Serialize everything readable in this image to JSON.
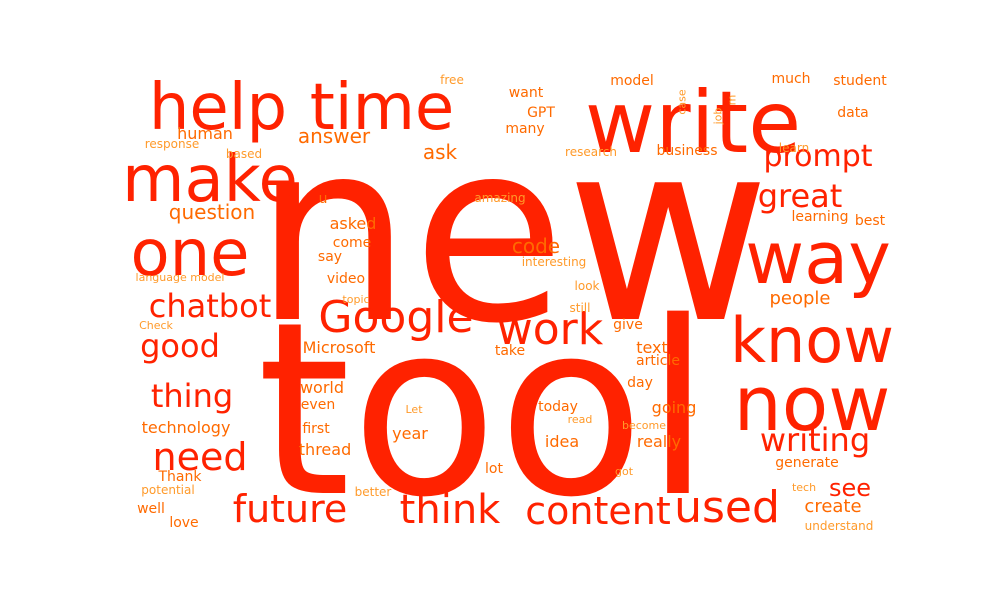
{
  "palette": {
    "red": "#ff2200",
    "orange": "#ff6a00",
    "light": "#ff9a2a"
  },
  "words": [
    {
      "text": "new",
      "color": "red"
    },
    {
      "text": "tool",
      "color": "red"
    },
    {
      "text": "write",
      "color": "red"
    },
    {
      "text": "help",
      "color": "red"
    },
    {
      "text": "time",
      "color": "red"
    },
    {
      "text": "make",
      "color": "red"
    },
    {
      "text": "one",
      "color": "red"
    },
    {
      "text": "way",
      "color": "red"
    },
    {
      "text": "know",
      "color": "red"
    },
    {
      "text": "now",
      "color": "red"
    },
    {
      "text": "Google",
      "color": "red"
    },
    {
      "text": "work",
      "color": "red"
    },
    {
      "text": "chatbot",
      "color": "red"
    },
    {
      "text": "good",
      "color": "red"
    },
    {
      "text": "thing",
      "color": "red"
    },
    {
      "text": "need",
      "color": "red"
    },
    {
      "text": "future",
      "color": "red"
    },
    {
      "text": "think",
      "color": "red"
    },
    {
      "text": "content",
      "color": "red"
    },
    {
      "text": "used",
      "color": "red"
    },
    {
      "text": "writing",
      "color": "red"
    },
    {
      "text": "prompt",
      "color": "red"
    },
    {
      "text": "great",
      "color": "red"
    },
    {
      "text": "see",
      "color": "red"
    },
    {
      "text": "question",
      "color": "orange"
    },
    {
      "text": "answer",
      "color": "orange"
    },
    {
      "text": "ask",
      "color": "orange"
    },
    {
      "text": "code",
      "color": "orange"
    },
    {
      "text": "people",
      "color": "orange"
    },
    {
      "text": "create",
      "color": "orange"
    },
    {
      "text": "Microsoft",
      "color": "orange"
    },
    {
      "text": "human",
      "color": "orange"
    },
    {
      "text": "technology",
      "color": "orange"
    },
    {
      "text": "Thank",
      "color": "orange"
    },
    {
      "text": "text",
      "color": "orange"
    },
    {
      "text": "article",
      "color": "orange"
    },
    {
      "text": "day",
      "color": "orange"
    },
    {
      "text": "going",
      "color": "orange"
    },
    {
      "text": "really",
      "color": "orange"
    },
    {
      "text": "generate",
      "color": "orange"
    },
    {
      "text": "today",
      "color": "orange"
    },
    {
      "text": "year",
      "color": "orange"
    },
    {
      "text": "idea",
      "color": "orange"
    },
    {
      "text": "world",
      "color": "orange"
    },
    {
      "text": "even",
      "color": "orange"
    },
    {
      "text": "first",
      "color": "orange"
    },
    {
      "text": "thread",
      "color": "orange"
    },
    {
      "text": "lot",
      "color": "orange"
    },
    {
      "text": "take",
      "color": "orange"
    },
    {
      "text": "give",
      "color": "orange"
    },
    {
      "text": "video",
      "color": "orange"
    },
    {
      "text": "asked",
      "color": "orange"
    },
    {
      "text": "come",
      "color": "orange"
    },
    {
      "text": "say",
      "color": "orange"
    },
    {
      "text": "u",
      "color": "orange"
    },
    {
      "text": "want",
      "color": "orange"
    },
    {
      "text": "GPT",
      "color": "orange"
    },
    {
      "text": "many",
      "color": "orange"
    },
    {
      "text": "model",
      "color": "orange"
    },
    {
      "text": "much",
      "color": "orange"
    },
    {
      "text": "student",
      "color": "orange"
    },
    {
      "text": "data",
      "color": "orange"
    },
    {
      "text": "business",
      "color": "orange"
    },
    {
      "text": "learn",
      "color": "light"
    },
    {
      "text": "learning",
      "color": "orange"
    },
    {
      "text": "best",
      "color": "orange"
    },
    {
      "text": "well",
      "color": "orange"
    },
    {
      "text": "love",
      "color": "orange"
    },
    {
      "text": "better",
      "color": "light"
    },
    {
      "text": "potential",
      "color": "light"
    },
    {
      "text": "response",
      "color": "light"
    },
    {
      "text": "based",
      "color": "light"
    },
    {
      "text": "research",
      "color": "light"
    },
    {
      "text": "free",
      "color": "light"
    },
    {
      "text": "amazing",
      "color": "light"
    },
    {
      "text": "interesting",
      "color": "light"
    },
    {
      "text": "language model",
      "color": "light"
    },
    {
      "text": "topic",
      "color": "light"
    },
    {
      "text": "Check",
      "color": "light"
    },
    {
      "text": "still",
      "color": "light"
    },
    {
      "text": "look",
      "color": "light"
    },
    {
      "text": "Let",
      "color": "light"
    },
    {
      "text": "read",
      "color": "light"
    },
    {
      "text": "become",
      "color": "light"
    },
    {
      "text": "got",
      "color": "light"
    },
    {
      "text": "tech",
      "color": "light"
    },
    {
      "text": "understand",
      "color": "light"
    },
    {
      "text": "case",
      "color": "light"
    },
    {
      "text": "m",
      "color": "light"
    },
    {
      "text": "job",
      "color": "light"
    }
  ]
}
